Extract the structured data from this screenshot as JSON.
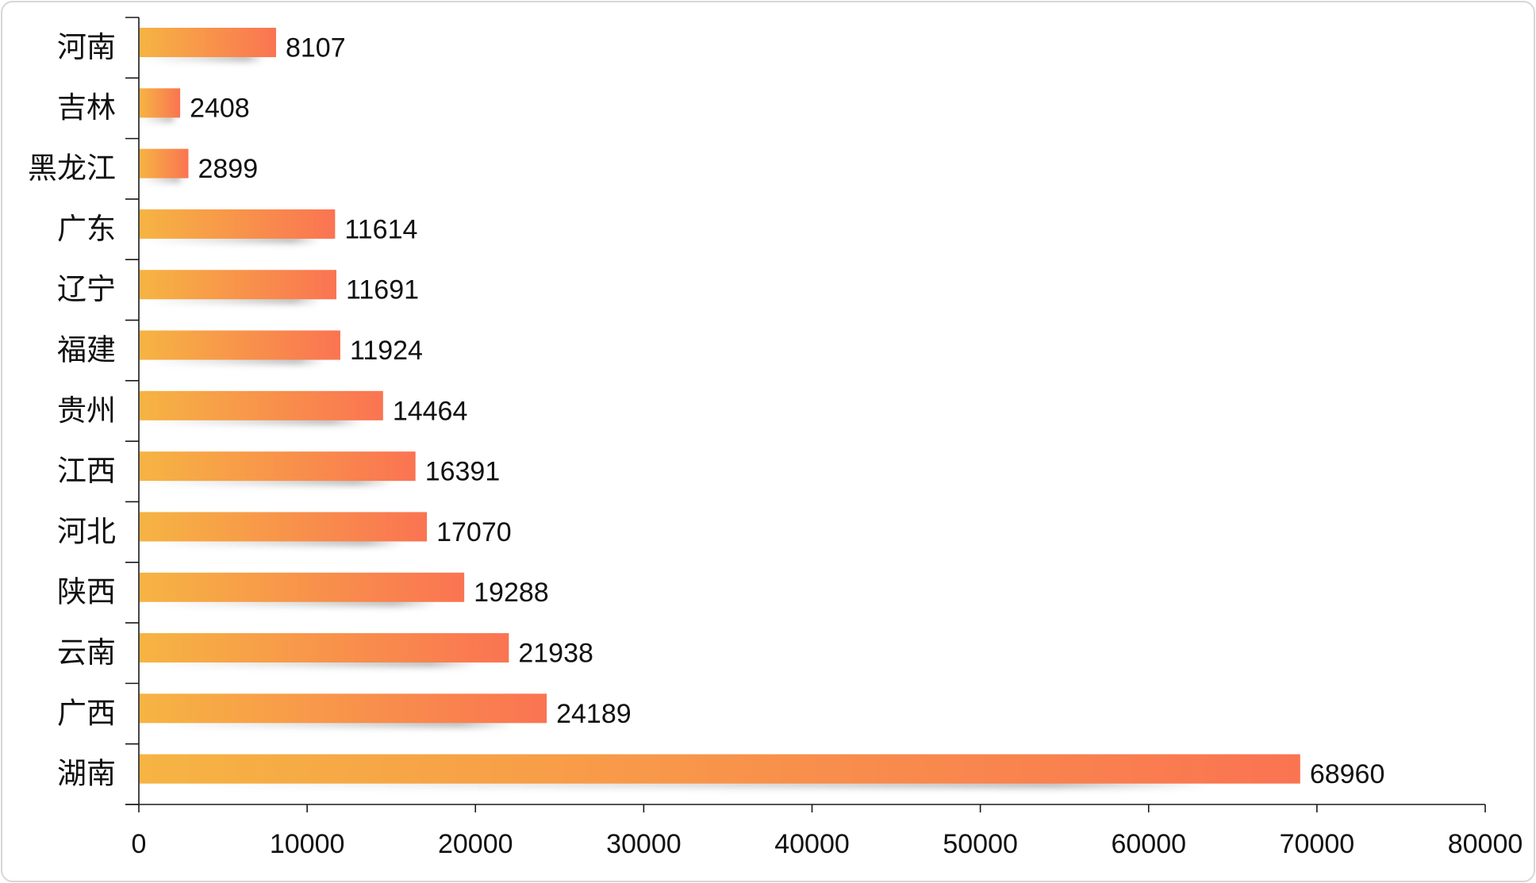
{
  "chart_data": {
    "type": "bar",
    "orientation": "horizontal",
    "categories": [
      "河南",
      "吉林",
      "黑龙江",
      "广东",
      "辽宁",
      "福建",
      "贵州",
      "江西",
      "河北",
      "陕西",
      "云南",
      "广西",
      "湖南"
    ],
    "values": [
      8107,
      2408,
      2899,
      11614,
      11691,
      11924,
      14464,
      16391,
      17070,
      19288,
      21938,
      24189,
      68960
    ],
    "xlim": [
      0,
      80000
    ],
    "xticks": [
      0,
      10000,
      20000,
      30000,
      40000,
      50000,
      60000,
      70000,
      80000
    ],
    "data_labels": true,
    "grid": false,
    "legend": "none",
    "colors": {
      "bar_start": "#F6B443",
      "bar_end": "#FA7452",
      "axis": "#1A1A1A",
      "text": "#111111",
      "frame": "#D6D6D6"
    }
  }
}
